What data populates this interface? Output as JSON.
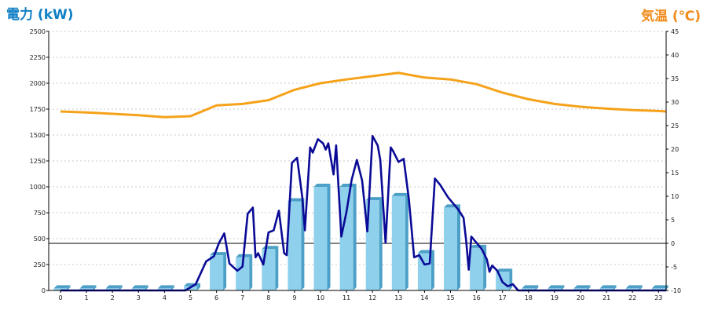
{
  "chart_data": {
    "type": "bar+line",
    "title_left": "電力 (kW)",
    "title_right": "気温 (℃)",
    "x_categories": [
      "0",
      "1",
      "2",
      "3",
      "4",
      "5",
      "6",
      "7",
      "8",
      "9",
      "10",
      "11",
      "12",
      "13",
      "14",
      "15",
      "16",
      "17",
      "18",
      "19",
      "20",
      "21",
      "22",
      "23"
    ],
    "y_left": {
      "min": 0,
      "max": 2500,
      "ticks": [
        0,
        250,
        500,
        750,
        1000,
        1250,
        1500,
        1750,
        2000,
        2250,
        2500
      ]
    },
    "y_right": {
      "min": -10,
      "max": 45,
      "ticks": [
        -10,
        -5,
        0,
        5,
        10,
        15,
        20,
        25,
        30,
        35,
        40,
        45
      ]
    },
    "power_bars": [
      20,
      20,
      20,
      20,
      20,
      40,
      340,
      320,
      400,
      860,
      1000,
      1000,
      870,
      910,
      360,
      800,
      410,
      180,
      20,
      20,
      20,
      20,
      20,
      20
    ],
    "power_line": [
      [
        0,
        0
      ],
      [
        1,
        0
      ],
      [
        2,
        0
      ],
      [
        3,
        0
      ],
      [
        4,
        0
      ],
      [
        4.8,
        0
      ],
      [
        5.2,
        60
      ],
      [
        5.6,
        280
      ],
      [
        5.9,
        330
      ],
      [
        6.1,
        460
      ],
      [
        6.3,
        550
      ],
      [
        6.5,
        260
      ],
      [
        6.8,
        190
      ],
      [
        7.0,
        230
      ],
      [
        7.2,
        740
      ],
      [
        7.4,
        800
      ],
      [
        7.5,
        320
      ],
      [
        7.6,
        360
      ],
      [
        7.8,
        250
      ],
      [
        8.0,
        560
      ],
      [
        8.2,
        580
      ],
      [
        8.4,
        770
      ],
      [
        8.6,
        360
      ],
      [
        8.7,
        340
      ],
      [
        8.9,
        1230
      ],
      [
        9.1,
        1280
      ],
      [
        9.3,
        900
      ],
      [
        9.4,
        580
      ],
      [
        9.6,
        1380
      ],
      [
        9.7,
        1330
      ],
      [
        9.9,
        1460
      ],
      [
        10.1,
        1420
      ],
      [
        10.2,
        1360
      ],
      [
        10.3,
        1420
      ],
      [
        10.5,
        1120
      ],
      [
        10.6,
        1400
      ],
      [
        10.8,
        520
      ],
      [
        11.0,
        760
      ],
      [
        11.2,
        1070
      ],
      [
        11.4,
        1260
      ],
      [
        11.6,
        1060
      ],
      [
        11.8,
        570
      ],
      [
        12.0,
        1490
      ],
      [
        12.2,
        1400
      ],
      [
        12.3,
        1260
      ],
      [
        12.5,
        460
      ],
      [
        12.7,
        1380
      ],
      [
        12.8,
        1340
      ],
      [
        13.0,
        1240
      ],
      [
        13.2,
        1270
      ],
      [
        13.4,
        880
      ],
      [
        13.6,
        320
      ],
      [
        13.8,
        340
      ],
      [
        14.0,
        250
      ],
      [
        14.2,
        260
      ],
      [
        14.4,
        1080
      ],
      [
        14.6,
        1020
      ],
      [
        14.9,
        900
      ],
      [
        15.1,
        840
      ],
      [
        15.3,
        780
      ],
      [
        15.5,
        700
      ],
      [
        15.6,
        480
      ],
      [
        15.7,
        200
      ],
      [
        15.8,
        520
      ],
      [
        16.0,
        460
      ],
      [
        16.2,
        400
      ],
      [
        16.4,
        300
      ],
      [
        16.5,
        180
      ],
      [
        16.6,
        240
      ],
      [
        16.8,
        190
      ],
      [
        17.0,
        80
      ],
      [
        17.2,
        40
      ],
      [
        17.4,
        60
      ],
      [
        17.6,
        0
      ],
      [
        18,
        0
      ],
      [
        19,
        0
      ],
      [
        20,
        0
      ],
      [
        21,
        0
      ],
      [
        22,
        0
      ],
      [
        23,
        0
      ],
      [
        23.3,
        0
      ]
    ],
    "temperature": [
      [
        0,
        28.0
      ],
      [
        1,
        27.8
      ],
      [
        2,
        27.5
      ],
      [
        3,
        27.2
      ],
      [
        4,
        26.8
      ],
      [
        5,
        27.0
      ],
      [
        6,
        29.3
      ],
      [
        7,
        29.6
      ],
      [
        8,
        30.4
      ],
      [
        9,
        32.6
      ],
      [
        10,
        34.0
      ],
      [
        11,
        34.8
      ],
      [
        12,
        35.5
      ],
      [
        13,
        36.2
      ],
      [
        14,
        35.2
      ],
      [
        15,
        34.8
      ],
      [
        16,
        33.8
      ],
      [
        17,
        32.0
      ],
      [
        18,
        30.6
      ],
      [
        19,
        29.6
      ],
      [
        20,
        29.0
      ],
      [
        21,
        28.6
      ],
      [
        22,
        28.3
      ],
      [
        23,
        28.1
      ],
      [
        23.3,
        28.0
      ]
    ],
    "colors": {
      "bar_face": "#8fd0ec",
      "bar_side": "#4c9fc6",
      "bar_top": "#b7e3f5",
      "power_line": "#0a0a96",
      "temperature_line": "#f5a21a",
      "left_title": "#0f7fc4",
      "right_title": "#f08a1a",
      "grid": "#c8c8c8"
    }
  }
}
